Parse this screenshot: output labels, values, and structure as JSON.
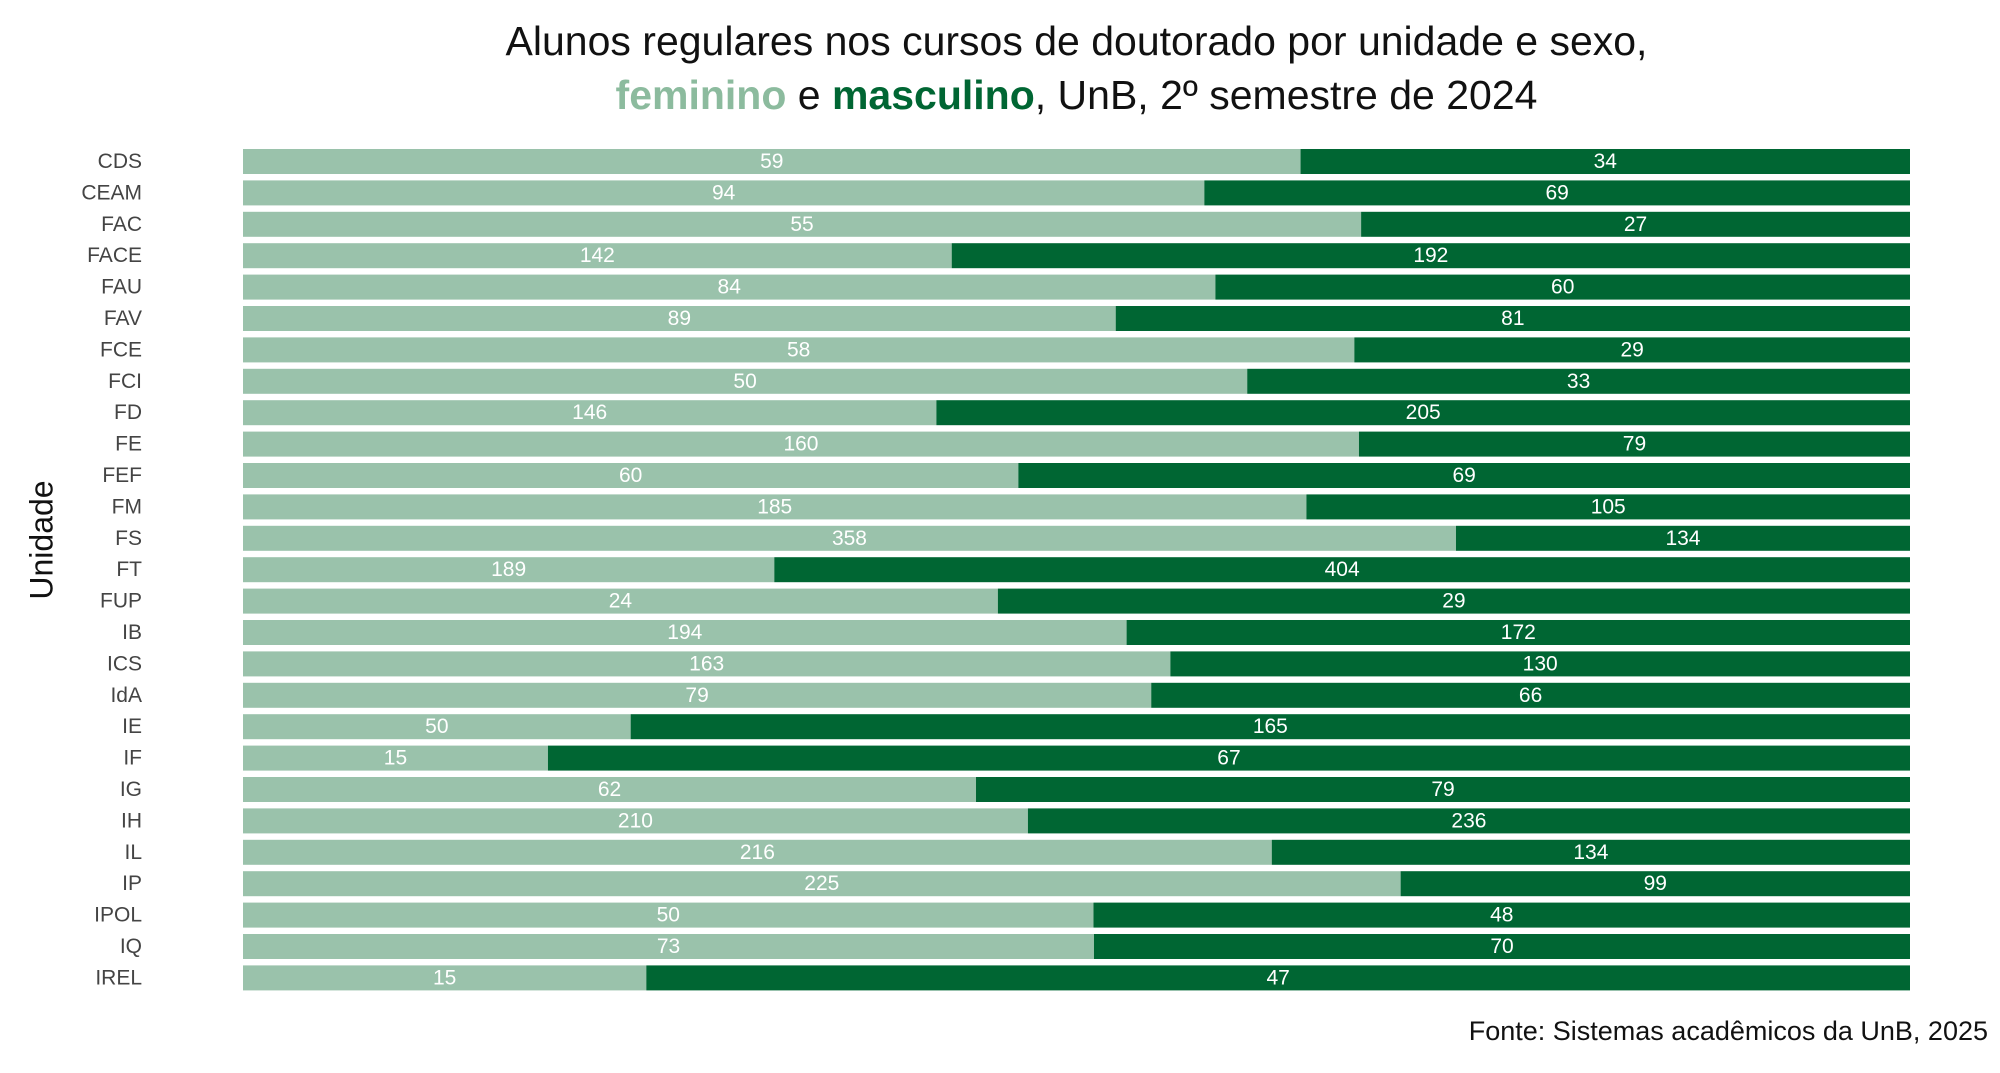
{
  "title": {
    "line1": "Alunos regulares nos cursos de doutorado por unidade e sexo,",
    "feminino": "feminino",
    "e": " e ",
    "masculino": "masculino",
    "rest": ", UnB, 2º semestre de 2024"
  },
  "source": "Fonte: Sistemas acadêmicos da UnB, 2025",
  "colors": {
    "feminino": "#9ac2ab",
    "masculino": "#006633",
    "label": "#ffffff"
  },
  "chart_data": {
    "type": "bar",
    "orientation": "horizontal",
    "stacked": "percent",
    "ylabel": "Unidade",
    "categories": [
      "CDS",
      "CEAM",
      "FAC",
      "FACE",
      "FAU",
      "FAV",
      "FCE",
      "FCI",
      "FD",
      "FE",
      "FEF",
      "FM",
      "FS",
      "FT",
      "FUP",
      "IB",
      "ICS",
      "IdA",
      "IE",
      "IF",
      "IG",
      "IH",
      "IL",
      "IP",
      "IPOL",
      "IQ",
      "IREL"
    ],
    "series": [
      {
        "name": "feminino",
        "values": [
          59,
          94,
          55,
          142,
          84,
          89,
          58,
          50,
          146,
          160,
          60,
          185,
          358,
          189,
          24,
          194,
          163,
          79,
          50,
          15,
          62,
          210,
          216,
          225,
          50,
          73,
          15
        ]
      },
      {
        "name": "masculino",
        "values": [
          34,
          69,
          27,
          192,
          60,
          81,
          29,
          33,
          205,
          79,
          69,
          105,
          134,
          404,
          29,
          172,
          130,
          66,
          165,
          67,
          79,
          236,
          134,
          99,
          48,
          70,
          47
        ]
      }
    ]
  }
}
